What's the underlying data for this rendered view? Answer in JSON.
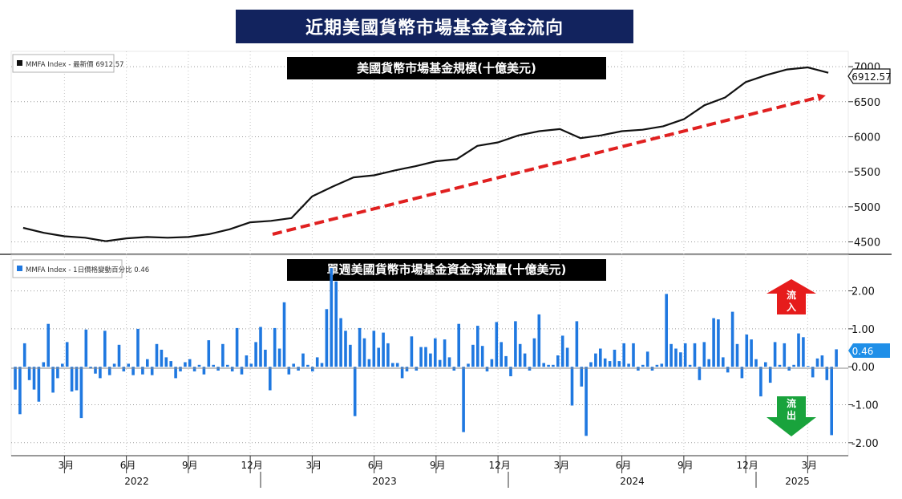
{
  "title": "近期美國貨幣市場基金資金流向",
  "colors": {
    "title_bg": "#12235e",
    "line": "#111111",
    "bar": "#1f78e0",
    "trend": "#e02020",
    "inflow": "#e61c1c",
    "outflow": "#19a33c",
    "value_tag": "#1f8fe8"
  },
  "chart_data": [
    {
      "type": "line",
      "panel_title": "美國貨幣市場基金規模(十億美元)",
      "legend": "MMFA Index - 最新價 6912.57",
      "last_value_label": "6912.57",
      "y_ticks": [
        4500,
        5000,
        5500,
        6000,
        6500,
        7000
      ],
      "y_tick_labels": [
        "4500",
        "5000",
        "5500",
        "6000",
        "6500",
        "7000"
      ],
      "ylim": [
        4380,
        7150
      ],
      "annotation": "upward trend arrow",
      "x": [
        "2022-01",
        "2022-02",
        "2022-03",
        "2022-04",
        "2022-05",
        "2022-06",
        "2022-07",
        "2022-08",
        "2022-09",
        "2022-10",
        "2022-11",
        "2022-12",
        "2023-01",
        "2023-02",
        "2023-03",
        "2023-04",
        "2023-05",
        "2023-06",
        "2023-07",
        "2023-08",
        "2023-09",
        "2023-10",
        "2023-11",
        "2023-12",
        "2024-01",
        "2024-02",
        "2024-03",
        "2024-04",
        "2024-05",
        "2024-06",
        "2024-07",
        "2024-08",
        "2024-09",
        "2024-10",
        "2024-11",
        "2024-12",
        "2025-01",
        "2025-02",
        "2025-03",
        "2025-04"
      ],
      "values": [
        4700,
        4630,
        4580,
        4560,
        4510,
        4550,
        4570,
        4560,
        4570,
        4610,
        4680,
        4780,
        4800,
        4840,
        5150,
        5290,
        5420,
        5450,
        5520,
        5580,
        5650,
        5680,
        5870,
        5920,
        6020,
        6080,
        6110,
        5980,
        6020,
        6080,
        6100,
        6150,
        6250,
        6450,
        6560,
        6780,
        6880,
        6960,
        6990,
        6912.57
      ]
    },
    {
      "type": "bar",
      "panel_title": "單週美國貨幣市場基金資金淨流量(十億美元)",
      "legend": "MMFA Index - 1日價格變動百分比 0.46",
      "last_value_label": "0.46",
      "y_ticks": [
        -2,
        -1,
        0,
        1,
        2
      ],
      "y_tick_labels": [
        "-2.00",
        "-1.00",
        "0.00",
        "1.00",
        "2.00"
      ],
      "ylim": [
        -2.3,
        2.9
      ],
      "annotations": {
        "inflow": "流入",
        "outflow": "流出"
      },
      "values": [
        -0.6,
        -1.25,
        0.62,
        -0.35,
        -0.6,
        -0.92,
        0.12,
        1.13,
        -0.68,
        -0.3,
        0.08,
        0.65,
        -0.65,
        -0.62,
        -1.35,
        0.98,
        -0.05,
        -0.18,
        -0.3,
        0.95,
        -0.22,
        0.08,
        0.58,
        -0.12,
        0.08,
        -0.22,
        1.0,
        -0.2,
        0.2,
        -0.22,
        0.6,
        0.45,
        0.25,
        0.15,
        -0.3,
        -0.12,
        0.12,
        0.2,
        -0.12,
        0.05,
        -0.2,
        0.7,
        0.05,
        -0.1,
        0.6,
        0.05,
        -0.12,
        1.02,
        -0.2,
        0.3,
        0.08,
        0.65,
        1.05,
        0.45,
        -0.62,
        1.02,
        0.48,
        1.7,
        -0.2,
        0.08,
        -0.1,
        0.35,
        0.05,
        -0.12,
        0.25,
        0.1,
        1.52,
        2.6,
        2.25,
        1.28,
        0.95,
        0.58,
        -1.3,
        1.02,
        0.75,
        0.2,
        0.95,
        0.5,
        0.9,
        0.62,
        0.1,
        0.1,
        -0.3,
        -0.12,
        0.8,
        -0.1,
        0.52,
        0.52,
        0.35,
        0.75,
        0.18,
        0.72,
        0.25,
        -0.1,
        1.13,
        -1.72,
        0.08,
        0.58,
        1.08,
        0.55,
        -0.12,
        0.2,
        1.18,
        0.65,
        0.28,
        -0.25,
        1.2,
        0.6,
        0.35,
        -0.1,
        0.75,
        1.38,
        0.1,
        0.05,
        0.05,
        0.3,
        0.82,
        0.5,
        -1.02,
        1.2,
        -0.52,
        -1.82,
        0.12,
        0.35,
        0.48,
        0.22,
        0.15,
        0.45,
        0.15,
        0.62,
        0.08,
        0.62,
        -0.1,
        0.05,
        0.4,
        -0.1,
        0.05,
        0.08,
        1.92,
        0.6,
        0.48,
        0.38,
        0.62,
        0.05,
        0.62,
        -0.35,
        0.65,
        0.2,
        1.28,
        1.25,
        0.25,
        -0.15,
        1.45,
        0.6,
        -0.3,
        0.85,
        0.72,
        0.2,
        -0.78,
        0.12,
        -0.42,
        0.65,
        0.05,
        0.62,
        -0.1,
        0.05,
        0.88,
        0.78,
        0.02,
        -0.28,
        0.22,
        0.3,
        -0.35,
        -1.8,
        0.46
      ]
    }
  ],
  "x_axis": {
    "month_labels": [
      "3月",
      "6月",
      "9月",
      "12月",
      "3月",
      "6月",
      "9月",
      "12月",
      "3月",
      "6月",
      "9月",
      "12月",
      "3月"
    ],
    "month_index": [
      2,
      5,
      8,
      11,
      14,
      17,
      20,
      23,
      26,
      29,
      32,
      35,
      38
    ],
    "year_labels": [
      "2022",
      "2023",
      "2024",
      "2025"
    ],
    "year_center_index": [
      5.5,
      17.5,
      29.5,
      37.5
    ],
    "year_divider_index": [
      11.5,
      23.5,
      35.5
    ]
  }
}
